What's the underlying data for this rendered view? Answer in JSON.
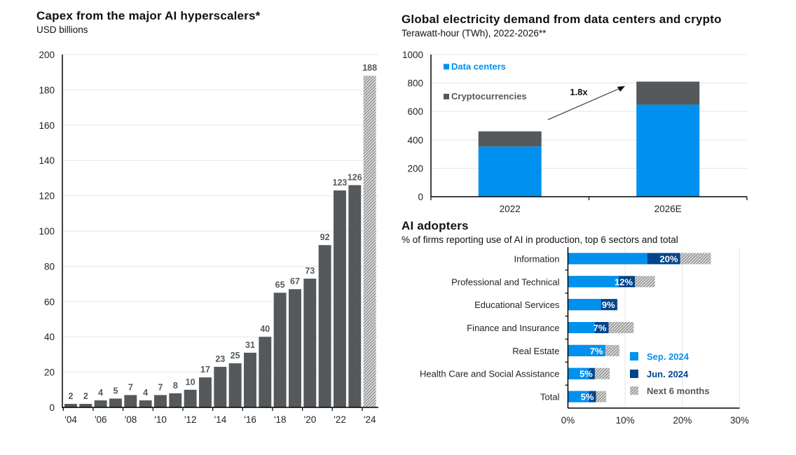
{
  "colors": {
    "dark_bar": "#55595c",
    "data_centers": "#0091ef",
    "crypto": "#55595c",
    "sep": "#0091ef",
    "jun": "#00448c",
    "grid": "#e6e6e6",
    "label_gray": "#55595c"
  },
  "chart_data": [
    {
      "type": "bar",
      "title": "Capex from the major AI hyperscalers*",
      "subtitle": "USD billions",
      "xlabel": "",
      "ylabel": "",
      "ylim": [
        0,
        200
      ],
      "yticks": [
        0,
        20,
        40,
        60,
        80,
        100,
        120,
        140,
        160,
        180,
        200
      ],
      "grid": true,
      "categories": [
        "2004",
        "2005",
        "2006",
        "2007",
        "2008",
        "2009",
        "2010",
        "2011",
        "2012",
        "2013",
        "2014",
        "2015",
        "2016",
        "2017",
        "2018",
        "2019",
        "2020",
        "2021",
        "2022",
        "2023",
        "2024"
      ],
      "xtick_labels": [
        "'04",
        "'06",
        "'08",
        "'10",
        "'12",
        "'14",
        "'16",
        "'18",
        "'20",
        "'22",
        "'24"
      ],
      "values": [
        2,
        2,
        4,
        5,
        7,
        4,
        7,
        8,
        10,
        17,
        23,
        25,
        31,
        40,
        65,
        67,
        73,
        92,
        123,
        126,
        188
      ],
      "data_labels": [
        "2",
        "2",
        "4",
        "5",
        "7",
        "4",
        "7",
        "8",
        "10",
        "17",
        "23",
        "25",
        "31",
        "40",
        "65",
        "67",
        "73",
        "92",
        "123",
        "126",
        "188"
      ],
      "estimated_last": true
    },
    {
      "type": "bar",
      "stacked": true,
      "title": "Global electricity demand from data centers and crypto",
      "subtitle": "Terawatt-hour (TWh), 2022-2026**",
      "ylim": [
        0,
        1000
      ],
      "yticks": [
        0,
        200,
        400,
        600,
        800,
        1000
      ],
      "grid": true,
      "categories": [
        "2022",
        "2026E"
      ],
      "series": [
        {
          "name": "Data centers",
          "values": [
            353,
            648
          ]
        },
        {
          "name": "Cryptocurrencies",
          "values": [
            107,
            162
          ]
        }
      ],
      "legend": [
        "Data centers",
        "Cryptocurrencies"
      ],
      "legend_position": "top-left",
      "annotation": {
        "text": "1.8x",
        "type": "arrow",
        "from": "2022",
        "to": "2026E"
      }
    },
    {
      "type": "bar",
      "orientation": "horizontal",
      "title": "AI adopters",
      "subtitle": "% of firms reporting use of AI in production, top 6 sectors and total",
      "xlim": [
        0,
        30
      ],
      "xticks": [
        "0%",
        "10%",
        "20%",
        "30%"
      ],
      "xtick_values": [
        0,
        10,
        20,
        30
      ],
      "grid": true,
      "categories": [
        "Information",
        "Professional and Technical",
        "Educational Services",
        "Finance and Insurance",
        "Real Estate",
        "Health Care and Social Assistance",
        "Total"
      ],
      "series": [
        {
          "name": "Sep. 2024",
          "values": [
            13.9,
            8.9,
            5.8,
            4.7,
            6.5,
            3.7,
            3.7
          ]
        },
        {
          "name": "Jun. 2024",
          "values": [
            19.6,
            11.7,
            8.6,
            7.1,
            6.5,
            4.7,
            4.9
          ]
        },
        {
          "name": "Next 6 months",
          "values": [
            25.0,
            15.2,
            8.7,
            11.5,
            9.0,
            7.3,
            6.7
          ]
        }
      ],
      "data_labels": [
        "20%",
        "12%",
        "9%",
        "7%",
        "7%",
        "5%",
        "5%"
      ],
      "legend": [
        "Sep. 2024",
        "Jun. 2024",
        "Next 6 months"
      ],
      "legend_position": "bottom-right"
    }
  ]
}
